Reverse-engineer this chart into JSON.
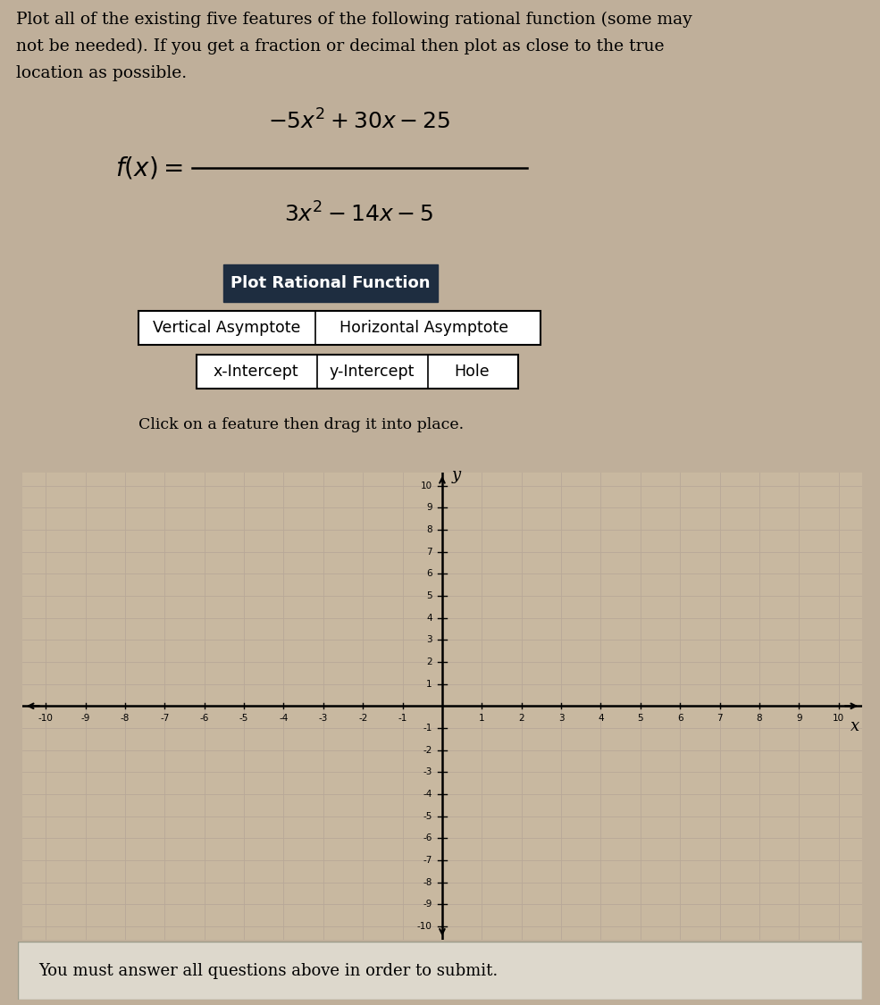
{
  "title_text": "Plot all of the existing five features of the following rational function (some may\nnot be needed). If you get a fraction or decimal then plot as close to the true\nlocation as possible.",
  "button_text": "Plot Rational Function",
  "button_bg": "#1e2d40",
  "button_fg": "#ffffff",
  "row1_labels": [
    "Vertical Asymptote",
    "Horizontal Asymptote"
  ],
  "row2_labels": [
    "x-Intercept",
    "y-Intercept",
    "Hole"
  ],
  "click_text": "Click on a feature then drag it into place.",
  "axis_label_x": "x",
  "axis_label_y": "y",
  "x_ticks": [
    -10,
    -9,
    -8,
    -7,
    -6,
    -5,
    -4,
    -3,
    -2,
    -1,
    1,
    2,
    3,
    4,
    5,
    6,
    7,
    8,
    9,
    10
  ],
  "y_ticks": [
    -10,
    -9,
    -8,
    -7,
    -6,
    -5,
    -4,
    -3,
    -2,
    -1,
    1,
    2,
    3,
    4,
    5,
    6,
    7,
    8,
    9,
    10
  ],
  "x_range": [
    -10,
    10
  ],
  "y_range": [
    -10,
    10
  ],
  "grid_color": "#b8a898",
  "bg_color": "#c8b8a0",
  "page_bg": "#bfaf9a",
  "bottom_box_text": "You must answer all questions above in order to submit.",
  "bottom_box_bg": "#ddd8cc"
}
